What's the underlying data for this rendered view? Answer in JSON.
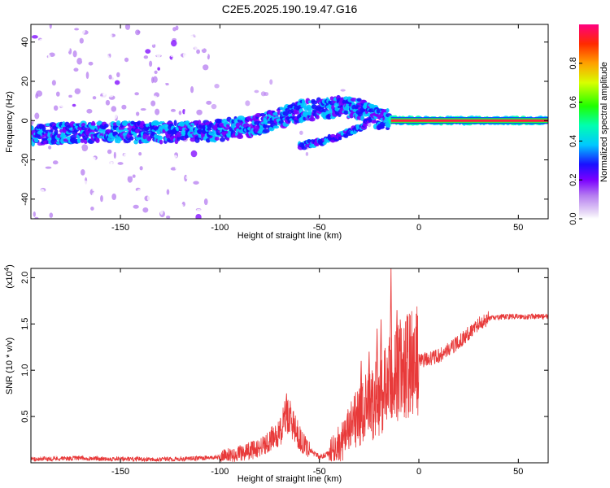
{
  "title": "C2E5.2025.190.19.47.G16",
  "chart_data": [
    {
      "type": "heatmap",
      "xlabel": "Height of straight line (km)",
      "ylabel": "Frequency (Hz)",
      "xlim": [
        -195,
        65
      ],
      "ylim": [
        -50,
        49
      ],
      "xticks": [
        "-150",
        "-100",
        "-50",
        "0",
        "50"
      ],
      "xtick_values": [
        -150,
        -100,
        -50,
        0,
        50
      ],
      "yticks": [
        "40",
        "20",
        "0",
        "-20",
        "-40"
      ],
      "ytick_values": [
        40,
        20,
        0,
        -20,
        -40
      ],
      "ridge": {
        "x": [
          -195,
          -160,
          -120,
          -100,
          -80,
          -60,
          -40,
          -30,
          -20,
          -10,
          0,
          10,
          20,
          40,
          65
        ],
        "y": [
          -7,
          -6,
          -6,
          -5,
          -2,
          5,
          7,
          6,
          1,
          0,
          0,
          0,
          0,
          0,
          0
        ]
      },
      "branch": {
        "x": [
          -60,
          -50,
          -40,
          -30,
          -25,
          -20
        ],
        "y": [
          -13,
          -11,
          -8,
          -4,
          0,
          4
        ]
      },
      "colorbar": {
        "label": "Normalized spectral amplitude",
        "ticks": [
          "0.0",
          "0.2",
          "0.4",
          "0.6",
          "0.8"
        ],
        "tick_values": [
          0.0,
          0.2,
          0.4,
          0.6,
          0.8
        ],
        "range": [
          0,
          1
        ]
      }
    },
    {
      "type": "line",
      "xlabel": "Height of straight line (km)",
      "ylabel": "SNR (10 * v/v)",
      "exponent_label": "(x10",
      "exponent_power": "4",
      "exponent_close": ")",
      "xlim": [
        -195,
        65
      ],
      "ylim": [
        0.0,
        2.1
      ],
      "xticks": [
        "-150",
        "-100",
        "-50",
        "0",
        "50"
      ],
      "xtick_values": [
        -150,
        -100,
        -50,
        0,
        50
      ],
      "yticks": [
        "2.0",
        "1.5",
        "1.0",
        "0.5"
      ],
      "ytick_values": [
        2.0,
        1.5,
        1.0,
        0.5
      ],
      "color": "#e83a3a",
      "series": [
        {
          "x": [
            -195,
            -170,
            -150,
            -120,
            -100,
            -90,
            -80,
            -70,
            -66,
            -62,
            -58,
            -50,
            -45,
            -40,
            -35,
            -30,
            -25,
            -20,
            -15,
            -10,
            -5,
            0,
            10,
            20,
            30,
            35,
            45,
            55,
            65
          ],
          "y": [
            0.04,
            0.05,
            0.04,
            0.04,
            0.06,
            0.1,
            0.16,
            0.32,
            0.55,
            0.35,
            0.2,
            0.06,
            0.1,
            0.2,
            0.35,
            0.5,
            0.62,
            0.7,
            0.85,
            1.0,
            1.05,
            1.1,
            1.15,
            1.3,
            1.5,
            1.56,
            1.58,
            1.58,
            1.58
          ]
        }
      ],
      "spikes": [
        {
          "x": -66.5,
          "y": 0.75
        },
        {
          "x": -29,
          "y": 1.1
        },
        {
          "x": -25,
          "y": 1.2
        },
        {
          "x": -21,
          "y": 1.45
        },
        {
          "x": -19,
          "y": 1.55
        },
        {
          "x": -14,
          "y": 2.1
        },
        {
          "x": -11,
          "y": 1.65
        }
      ]
    }
  ]
}
